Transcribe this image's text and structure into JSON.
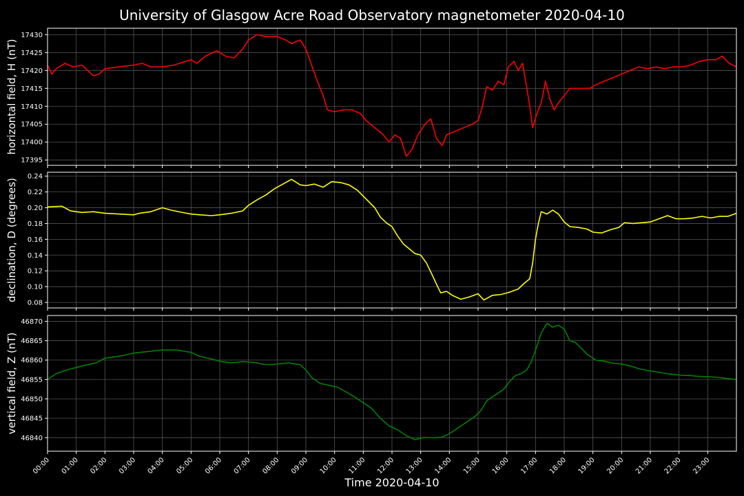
{
  "chart_data": {
    "type": "line",
    "title": "University of Glasgow Acre Road Observatory magnetometer 2020-04-10",
    "xlabel": "Time 2020-04-10",
    "x_tick_labels": [
      "00:00",
      "01:00",
      "02:00",
      "03:00",
      "04:00",
      "05:00",
      "06:00",
      "07:00",
      "08:00",
      "09:00",
      "10:00",
      "11:00",
      "12:00",
      "13:00",
      "14:00",
      "15:00",
      "16:00",
      "17:00",
      "18:00",
      "19:00",
      "20:00",
      "21:00",
      "22:00",
      "23:00"
    ],
    "x_range_hours": [
      0,
      24
    ],
    "grid": true,
    "background_color": "#000000",
    "panels": [
      {
        "ylabel": "horizontal field, H (nT)",
        "color": "#ff0000",
        "ylim": [
          17393.5,
          17431.8
        ],
        "yticks": [
          17395,
          17400,
          17405,
          17410,
          17415,
          17420,
          17425,
          17430
        ],
        "points": [
          [
            0,
            17421.5
          ],
          [
            0.15,
            17419
          ],
          [
            0.3,
            17420.5
          ],
          [
            0.6,
            17422
          ],
          [
            0.9,
            17421
          ],
          [
            1.2,
            17421.5
          ],
          [
            1.4,
            17420
          ],
          [
            1.6,
            17418.5
          ],
          [
            1.8,
            17419
          ],
          [
            2.0,
            17420.5
          ],
          [
            2.5,
            17421
          ],
          [
            3.0,
            17421.5
          ],
          [
            3.3,
            17422
          ],
          [
            3.6,
            17421
          ],
          [
            4.0,
            17421
          ],
          [
            4.4,
            17421.5
          ],
          [
            4.8,
            17422.5
          ],
          [
            5.0,
            17423
          ],
          [
            5.2,
            17422
          ],
          [
            5.5,
            17424
          ],
          [
            5.9,
            17425.5
          ],
          [
            6.2,
            17424
          ],
          [
            6.5,
            17423.5
          ],
          [
            6.8,
            17426
          ],
          [
            7.0,
            17428.5
          ],
          [
            7.3,
            17430
          ],
          [
            7.6,
            17429.5
          ],
          [
            8.0,
            17429.5
          ],
          [
            8.3,
            17428.5
          ],
          [
            8.5,
            17427.5
          ],
          [
            8.8,
            17428.5
          ],
          [
            9.0,
            17426
          ],
          [
            9.2,
            17421.5
          ],
          [
            9.4,
            17417
          ],
          [
            9.6,
            17413
          ],
          [
            9.75,
            17409
          ],
          [
            10.0,
            17408.5
          ],
          [
            10.3,
            17409
          ],
          [
            10.6,
            17409
          ],
          [
            10.9,
            17408
          ],
          [
            11.1,
            17406
          ],
          [
            11.4,
            17404
          ],
          [
            11.7,
            17402
          ],
          [
            11.9,
            17400
          ],
          [
            12.1,
            17402
          ],
          [
            12.3,
            17401
          ],
          [
            12.5,
            17396
          ],
          [
            12.7,
            17398
          ],
          [
            12.9,
            17402
          ],
          [
            13.15,
            17405
          ],
          [
            13.35,
            17406.5
          ],
          [
            13.55,
            17401
          ],
          [
            13.75,
            17399
          ],
          [
            13.9,
            17402
          ],
          [
            14.2,
            17403
          ],
          [
            14.5,
            17404
          ],
          [
            14.8,
            17405
          ],
          [
            15.0,
            17406
          ],
          [
            15.15,
            17410
          ],
          [
            15.3,
            17415.5
          ],
          [
            15.5,
            17414.5
          ],
          [
            15.7,
            17417
          ],
          [
            15.9,
            17416
          ],
          [
            16.05,
            17421
          ],
          [
            16.25,
            17422.5
          ],
          [
            16.4,
            17420
          ],
          [
            16.55,
            17422
          ],
          [
            16.7,
            17415
          ],
          [
            16.8,
            17410
          ],
          [
            16.9,
            17404
          ],
          [
            17.05,
            17408
          ],
          [
            17.2,
            17411
          ],
          [
            17.35,
            17417
          ],
          [
            17.5,
            17412
          ],
          [
            17.65,
            17409
          ],
          [
            17.8,
            17411
          ],
          [
            18.0,
            17413
          ],
          [
            18.2,
            17415
          ],
          [
            18.4,
            17415
          ],
          [
            18.6,
            17415
          ],
          [
            18.9,
            17415
          ],
          [
            19.1,
            17416
          ],
          [
            19.4,
            17417
          ],
          [
            19.7,
            17418
          ],
          [
            20.0,
            17419
          ],
          [
            20.3,
            17420
          ],
          [
            20.6,
            17421
          ],
          [
            20.9,
            17420.5
          ],
          [
            21.2,
            17421
          ],
          [
            21.5,
            17420.5
          ],
          [
            21.8,
            17421
          ],
          [
            22.1,
            17421
          ],
          [
            22.4,
            17421.5
          ],
          [
            22.7,
            17422.5
          ],
          [
            23.0,
            17423
          ],
          [
            23.3,
            17423
          ],
          [
            23.5,
            17424
          ],
          [
            23.75,
            17422
          ],
          [
            24,
            17421
          ]
        ]
      },
      {
        "ylabel": "declination, D (degrees)",
        "color": "#ffff00",
        "ylim": [
          0.073,
          0.245
        ],
        "yticks": [
          0.08,
          0.1,
          0.12,
          0.14,
          0.16,
          0.18,
          0.2,
          0.22,
          0.24
        ],
        "points": [
          [
            0,
            0.201
          ],
          [
            0.5,
            0.202
          ],
          [
            0.8,
            0.196
          ],
          [
            1.2,
            0.194
          ],
          [
            1.6,
            0.195
          ],
          [
            2.0,
            0.193
          ],
          [
            2.5,
            0.192
          ],
          [
            3.0,
            0.191
          ],
          [
            3.2,
            0.193
          ],
          [
            3.6,
            0.195
          ],
          [
            4.0,
            0.2
          ],
          [
            4.3,
            0.197
          ],
          [
            4.7,
            0.194
          ],
          [
            5.0,
            0.192
          ],
          [
            5.3,
            0.191
          ],
          [
            5.7,
            0.19
          ],
          [
            6.0,
            0.191
          ],
          [
            6.4,
            0.193
          ],
          [
            6.8,
            0.196
          ],
          [
            7.0,
            0.203
          ],
          [
            7.3,
            0.21
          ],
          [
            7.6,
            0.216
          ],
          [
            7.9,
            0.224
          ],
          [
            8.2,
            0.23
          ],
          [
            8.5,
            0.236
          ],
          [
            8.8,
            0.229
          ],
          [
            9.0,
            0.228
          ],
          [
            9.3,
            0.23
          ],
          [
            9.6,
            0.226
          ],
          [
            9.9,
            0.233
          ],
          [
            10.2,
            0.232
          ],
          [
            10.5,
            0.229
          ],
          [
            10.8,
            0.222
          ],
          [
            11.1,
            0.211
          ],
          [
            11.4,
            0.2
          ],
          [
            11.6,
            0.188
          ],
          [
            11.8,
            0.181
          ],
          [
            12.0,
            0.176
          ],
          [
            12.2,
            0.164
          ],
          [
            12.4,
            0.154
          ],
          [
            12.6,
            0.148
          ],
          [
            12.8,
            0.142
          ],
          [
            13.0,
            0.14
          ],
          [
            13.2,
            0.13
          ],
          [
            13.4,
            0.115
          ],
          [
            13.55,
            0.103
          ],
          [
            13.7,
            0.092
          ],
          [
            13.9,
            0.094
          ],
          [
            14.1,
            0.089
          ],
          [
            14.4,
            0.084
          ],
          [
            14.7,
            0.087
          ],
          [
            15.0,
            0.091
          ],
          [
            15.2,
            0.083
          ],
          [
            15.5,
            0.089
          ],
          [
            15.8,
            0.09
          ],
          [
            16.1,
            0.093
          ],
          [
            16.4,
            0.097
          ],
          [
            16.6,
            0.104
          ],
          [
            16.8,
            0.11
          ],
          [
            16.9,
            0.13
          ],
          [
            17.0,
            0.16
          ],
          [
            17.1,
            0.18
          ],
          [
            17.2,
            0.195
          ],
          [
            17.4,
            0.192
          ],
          [
            17.6,
            0.197
          ],
          [
            17.8,
            0.192
          ],
          [
            18.0,
            0.182
          ],
          [
            18.2,
            0.176
          ],
          [
            18.5,
            0.175
          ],
          [
            18.8,
            0.173
          ],
          [
            19.0,
            0.169
          ],
          [
            19.3,
            0.168
          ],
          [
            19.6,
            0.172
          ],
          [
            19.9,
            0.175
          ],
          [
            20.1,
            0.181
          ],
          [
            20.4,
            0.18
          ],
          [
            20.7,
            0.181
          ],
          [
            21.0,
            0.182
          ],
          [
            21.3,
            0.186
          ],
          [
            21.6,
            0.19
          ],
          [
            21.9,
            0.186
          ],
          [
            22.2,
            0.186
          ],
          [
            22.5,
            0.187
          ],
          [
            22.8,
            0.189
          ],
          [
            23.1,
            0.187
          ],
          [
            23.4,
            0.189
          ],
          [
            23.7,
            0.189
          ],
          [
            24,
            0.193
          ]
        ]
      },
      {
        "ylabel": "vertical field, Z (nT)",
        "color": "#008000",
        "ylim": [
          46836.5,
          46871.5
        ],
        "yticks": [
          46840,
          46845,
          46850,
          46855,
          46860,
          46865,
          46870
        ],
        "points": [
          [
            0,
            46855
          ],
          [
            0.3,
            46856.5
          ],
          [
            0.7,
            46857.5
          ],
          [
            1.2,
            46858.5
          ],
          [
            1.7,
            46859.3
          ],
          [
            2.0,
            46860.5
          ],
          [
            2.5,
            46861
          ],
          [
            3.0,
            46861.8
          ],
          [
            3.5,
            46862.2
          ],
          [
            4.0,
            46862.6
          ],
          [
            4.5,
            46862.6
          ],
          [
            5.0,
            46862
          ],
          [
            5.3,
            46861
          ],
          [
            5.7,
            46860.3
          ],
          [
            6.0,
            46859.7
          ],
          [
            6.4,
            46859.3
          ],
          [
            6.8,
            46859.6
          ],
          [
            7.2,
            46859.4
          ],
          [
            7.6,
            46858.8
          ],
          [
            8.0,
            46859
          ],
          [
            8.4,
            46859.3
          ],
          [
            8.8,
            46858.8
          ],
          [
            9.0,
            46857.5
          ],
          [
            9.2,
            46855.5
          ],
          [
            9.5,
            46854
          ],
          [
            9.8,
            46853.5
          ],
          [
            10.1,
            46853
          ],
          [
            10.4,
            46851.8
          ],
          [
            10.7,
            46850.5
          ],
          [
            11.0,
            46849
          ],
          [
            11.3,
            46847.5
          ],
          [
            11.6,
            46845
          ],
          [
            11.9,
            46843
          ],
          [
            12.2,
            46842
          ],
          [
            12.5,
            46840.5
          ],
          [
            12.8,
            46839.5
          ],
          [
            13.1,
            46840
          ],
          [
            13.4,
            46840
          ],
          [
            13.7,
            46840
          ],
          [
            14.0,
            46841
          ],
          [
            14.3,
            46842.5
          ],
          [
            14.6,
            46844
          ],
          [
            14.9,
            46845.5
          ],
          [
            15.1,
            46847
          ],
          [
            15.3,
            46849.5
          ],
          [
            15.5,
            46850.5
          ],
          [
            15.7,
            46851.5
          ],
          [
            15.9,
            46852.5
          ],
          [
            16.1,
            46854.5
          ],
          [
            16.3,
            46856
          ],
          [
            16.5,
            46856.5
          ],
          [
            16.7,
            46857.5
          ],
          [
            16.85,
            46859.5
          ],
          [
            17.0,
            46862.5
          ],
          [
            17.2,
            46867
          ],
          [
            17.4,
            46869.5
          ],
          [
            17.6,
            46868.5
          ],
          [
            17.8,
            46869
          ],
          [
            18.0,
            46868
          ],
          [
            18.2,
            46865
          ],
          [
            18.4,
            46864.5
          ],
          [
            18.6,
            46863
          ],
          [
            18.8,
            46861.5
          ],
          [
            19.1,
            46860
          ],
          [
            19.4,
            46859.7
          ],
          [
            19.7,
            46859.2
          ],
          [
            20.0,
            46859
          ],
          [
            20.3,
            46858.5
          ],
          [
            20.6,
            46857.8
          ],
          [
            20.9,
            46857.3
          ],
          [
            21.2,
            46857
          ],
          [
            21.5,
            46856.6
          ],
          [
            21.8,
            46856.3
          ],
          [
            22.1,
            46856.1
          ],
          [
            22.4,
            46856
          ],
          [
            22.7,
            46855.8
          ],
          [
            23.0,
            46855.7
          ],
          [
            23.3,
            46855.6
          ],
          [
            23.6,
            46855.3
          ],
          [
            24,
            46855
          ]
        ]
      }
    ]
  }
}
